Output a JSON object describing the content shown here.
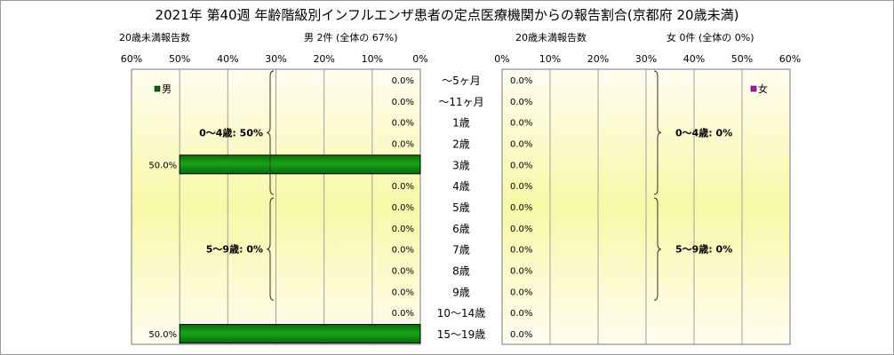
{
  "title": "2021年 第40週 年齢階級別インフルエンザ患者の定点医療機関からの報告割合(京都府 20歳未満)",
  "colors": {
    "male_bar": "#0a6b0a",
    "male_bar_highlight": "#19a419",
    "female_marker": "#cc00cc",
    "plot_bg_edge": "#fefdf0",
    "plot_bg_center": "#f8f8a8",
    "grid": "#a0a0a0"
  },
  "age_labels": [
    "〜5ヶ月",
    "〜11ヶ月",
    "1歳",
    "2歳",
    "3歳",
    "4歳",
    "5歳",
    "6歳",
    "7歳",
    "8歳",
    "9歳",
    "10〜14歳",
    "15〜19歳"
  ],
  "chart_data": [
    {
      "type": "bar",
      "orientation": "horizontal",
      "direction": "right-to-left",
      "subtitle": "男 2件 (全体の 67%)",
      "count_label": "20歳未満報告数",
      "legend": "男",
      "legend_position": "top-left",
      "categories": [
        "〜5ヶ月",
        "〜11ヶ月",
        "1歳",
        "2歳",
        "3歳",
        "4歳",
        "5歳",
        "6歳",
        "7歳",
        "8歳",
        "9歳",
        "10〜14歳",
        "15〜19歳"
      ],
      "values": [
        0,
        0,
        0,
        0,
        50,
        0,
        0,
        0,
        0,
        0,
        0,
        0,
        50
      ],
      "value_labels": [
        "0.0%",
        "0.0%",
        "0.0%",
        "0.0%",
        "50.0%",
        "0.0%",
        "0.0%",
        "0.0%",
        "0.0%",
        "0.0%",
        "0.0%",
        "0.0%",
        "50.0%"
      ],
      "xlim": [
        0,
        60
      ],
      "xticks": [
        "60%",
        "50%",
        "40%",
        "30%",
        "20%",
        "10%",
        "0%"
      ],
      "grid": true,
      "brackets": [
        {
          "label": "0〜4歳: 50%",
          "from": "〜5ヶ月",
          "to": "4歳"
        },
        {
          "label": "5〜9歳: 0%",
          "from": "5歳",
          "to": "9歳"
        }
      ]
    },
    {
      "type": "bar",
      "orientation": "horizontal",
      "direction": "left-to-right",
      "subtitle": "女 0件 (全体の 0%)",
      "count_label": "20歳未満報告数",
      "legend": "女",
      "legend_position": "top-right",
      "categories": [
        "〜5ヶ月",
        "〜11ヶ月",
        "1歳",
        "2歳",
        "3歳",
        "4歳",
        "5歳",
        "6歳",
        "7歳",
        "8歳",
        "9歳",
        "10〜14歳",
        "15〜19歳"
      ],
      "values": [
        0,
        0,
        0,
        0,
        0,
        0,
        0,
        0,
        0,
        0,
        0,
        0,
        0
      ],
      "value_labels": [
        "0.0%",
        "0.0%",
        "0.0%",
        "0.0%",
        "0.0%",
        "0.0%",
        "0.0%",
        "0.0%",
        "0.0%",
        "0.0%",
        "0.0%",
        "0.0%",
        "0.0%"
      ],
      "xlim": [
        0,
        60
      ],
      "xticks": [
        "0%",
        "10%",
        "20%",
        "30%",
        "40%",
        "50%",
        "60%"
      ],
      "grid": true,
      "brackets": [
        {
          "label": "0〜4歳: 0%",
          "from": "〜5ヶ月",
          "to": "4歳"
        },
        {
          "label": "5〜9歳: 0%",
          "from": "5歳",
          "to": "9歳"
        }
      ]
    }
  ]
}
